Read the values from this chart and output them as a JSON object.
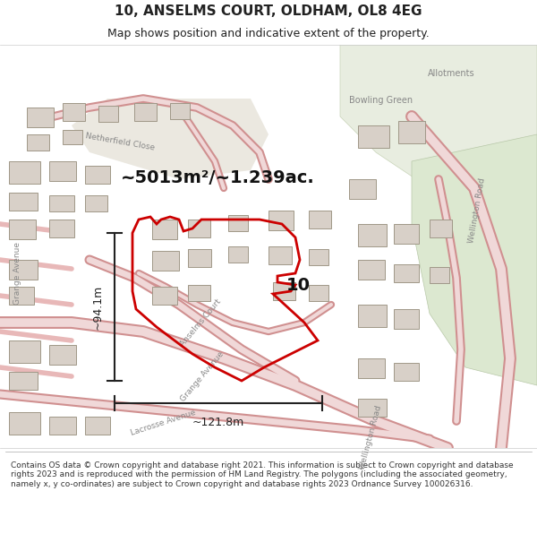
{
  "title": "10, ANSELMS COURT, OLDHAM, OL8 4EG",
  "subtitle": "Map shows position and indicative extent of the property.",
  "footer": "Contains OS data © Crown copyright and database right 2021. This information is subject to Crown copyright and database rights 2023 and is reproduced with the permission of HM Land Registry. The polygons (including the associated geometry, namely x, y co-ordinates) are subject to Crown copyright and database rights 2023 Ordnance Survey 100026316.",
  "area_label": "~5013m²/~1.239ac.",
  "width_label": "~121.8m",
  "height_label": "~94.1m",
  "property_number": "10",
  "map_bg": "#f2ede8",
  "road_outer": "#d09090",
  "road_inner": "#f0d8d8",
  "green1": "#e8ede0",
  "green2": "#dce8d0",
  "property_outline_color": "#cc0000",
  "dim_line_color": "#222222",
  "building_face": "#d8d0c8",
  "building_edge": "#a09888",
  "label_color": "#888888"
}
